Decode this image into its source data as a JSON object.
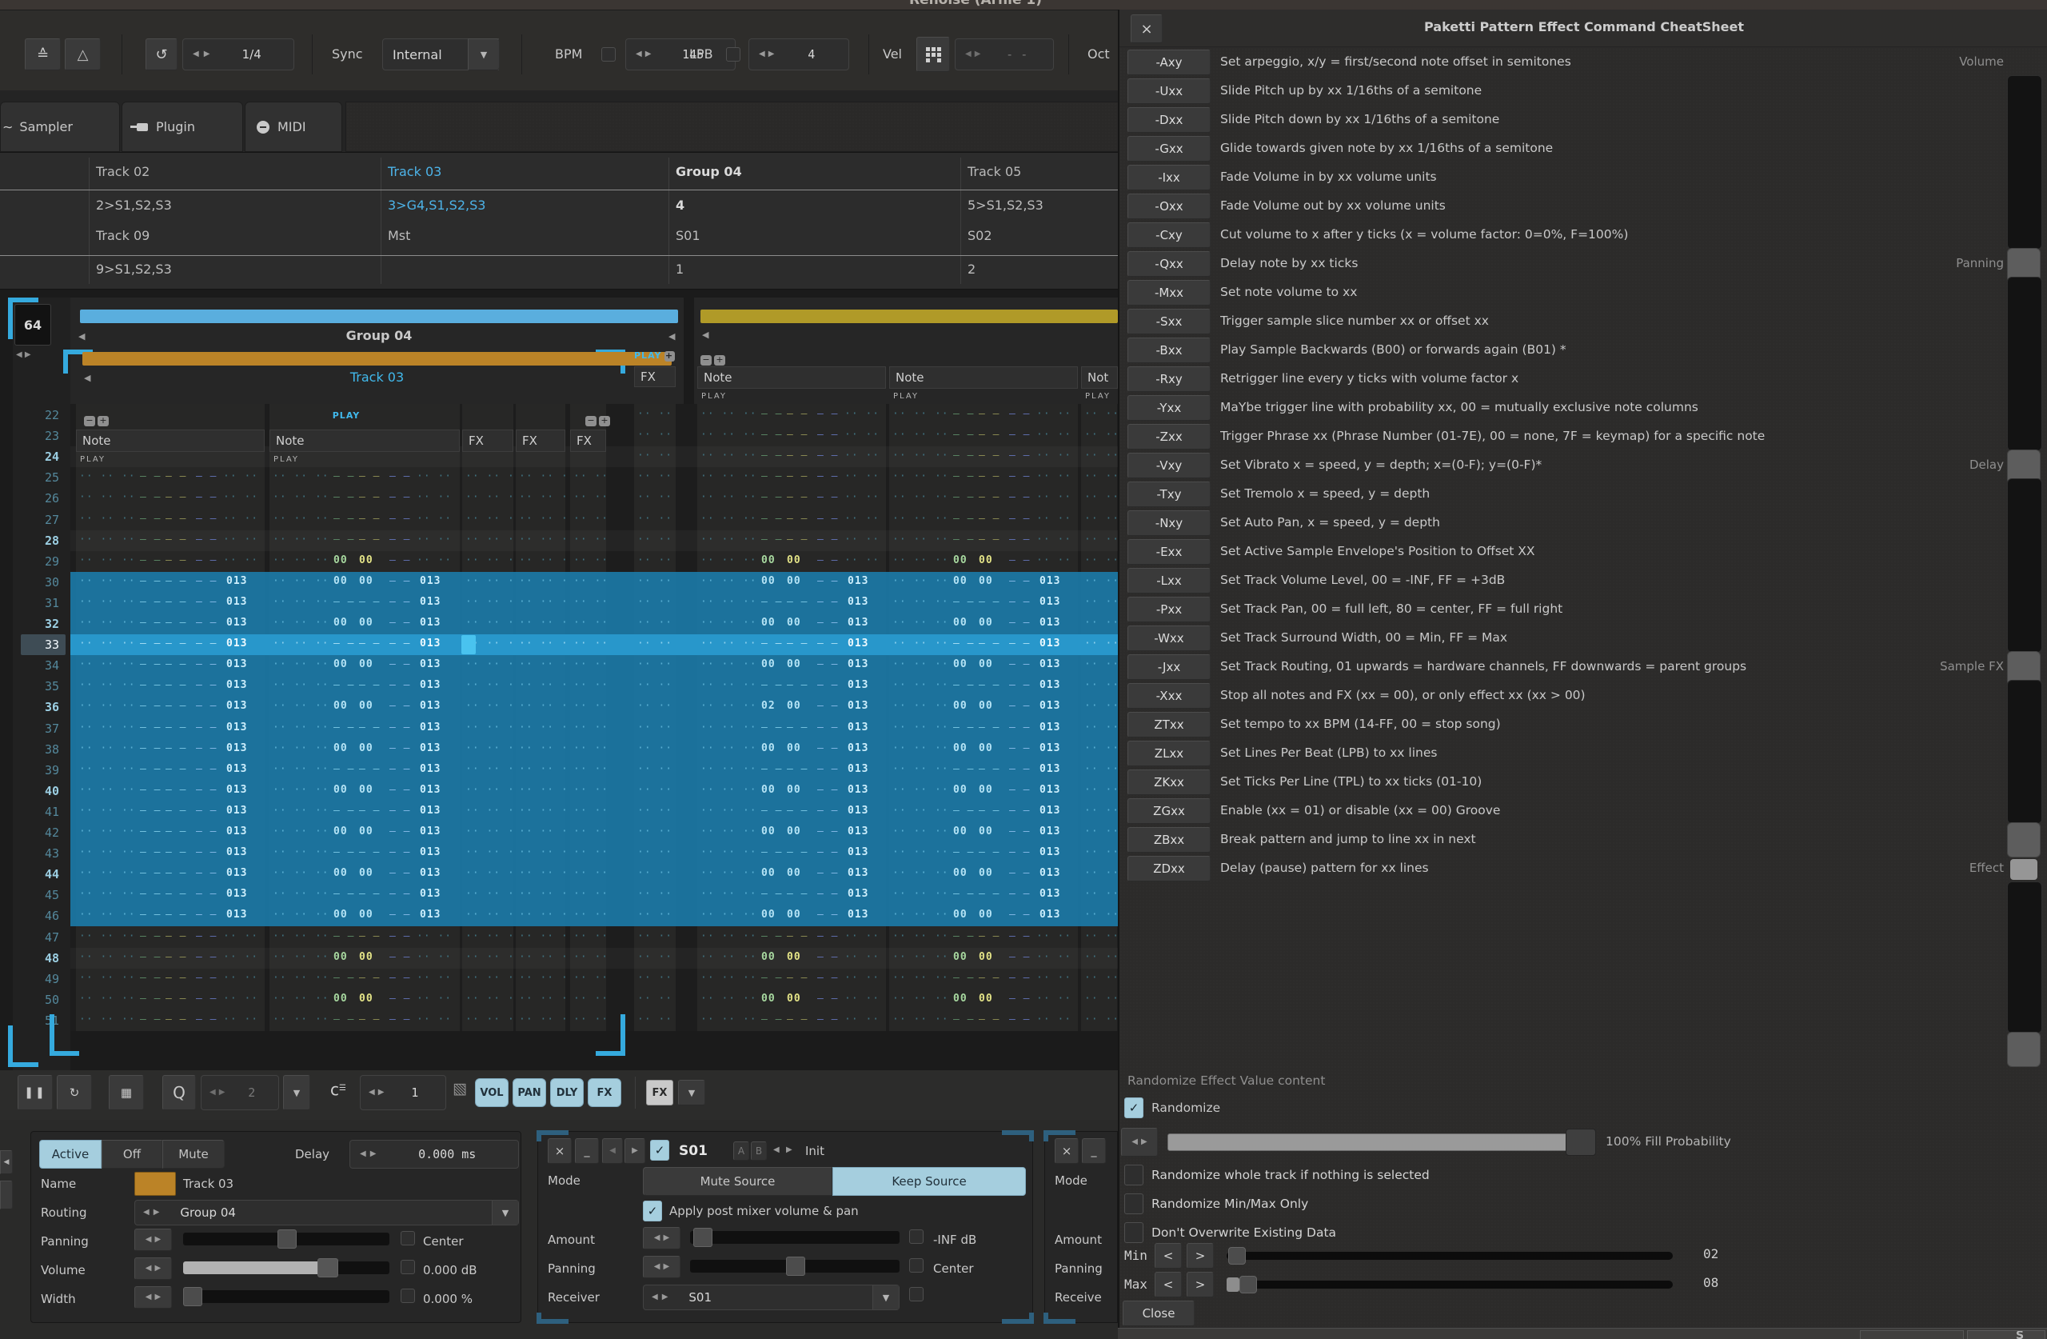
{
  "window": {
    "title": "Renoise (Arnie 1)"
  },
  "toolbar": {
    "quantize_value": "1/4",
    "sync_label": "Sync",
    "sync_value": "Internal",
    "bpm_label": "BPM",
    "bpm_value": "145",
    "lpb_label": "LPB",
    "lpb_value": "4",
    "vel_label": "Vel",
    "vel_value": "- -",
    "oct_label": "Oct"
  },
  "tabs": [
    {
      "label": "Sampler"
    },
    {
      "label": "Plugin"
    },
    {
      "label": "MIDI"
    }
  ],
  "routing_table": {
    "columns": [
      {
        "header": "Track 02",
        "style": "normal",
        "rows": [
          "2>S1,S2,S3",
          "Track 09",
          "9>S1,S2,S3"
        ]
      },
      {
        "header": "Track 03",
        "style": "blue",
        "rows": [
          "3>G4,S1,S2,S3",
          "Mst",
          ""
        ]
      },
      {
        "header": "Group 04",
        "style": "bold",
        "rows": [
          "4",
          "S01",
          "1"
        ]
      },
      {
        "header": "Track 05",
        "style": "normal",
        "rows": [
          "5>S1,S2,S3",
          "S02",
          "2"
        ]
      }
    ]
  },
  "pattern": {
    "length": "64",
    "group_title": "Group 04",
    "track_title": "Track 03",
    "play_label": "PLAY",
    "note_header": "Note",
    "fx_header": "FX",
    "cut_note_header": "Not",
    "tokens": {
      "dash": "– –",
      "vol_a": "00",
      "vol_b": "00",
      "vol_alt": "02",
      "fx_value": "013",
      "dots_a": "·· ·· ··",
      "dots_b": "·· ··",
      "dots_fx": "·· ·· ·· ··"
    },
    "line_start": 22,
    "line_end": 51,
    "selection_start": 30,
    "selection_end": 46,
    "current_line": 33,
    "rows": {
      "22": [
        "",
        "",
        "d",
        "d"
      ],
      "23": [
        "",
        "",
        "d",
        "d"
      ],
      "24": [
        "",
        "",
        "d",
        "d"
      ],
      "25": [
        "d",
        "d",
        "d",
        "d"
      ],
      "26": [
        "d",
        "d",
        "d",
        "d"
      ],
      "27": [
        "d",
        "d",
        "d",
        "d"
      ],
      "28": [
        "d",
        "d",
        "d",
        "d"
      ],
      "29": [
        "d",
        "g",
        "g",
        "g"
      ],
      "30": [
        "s",
        "sv",
        "sv",
        "sv"
      ],
      "31": [
        "s",
        "s",
        "s",
        "s"
      ],
      "32": [
        "s",
        "sv",
        "sv",
        "sv"
      ],
      "33": [
        "s",
        "s",
        "s",
        "s"
      ],
      "34": [
        "s",
        "sv",
        "sv",
        "sv"
      ],
      "35": [
        "s",
        "s",
        "s",
        "s"
      ],
      "36": [
        "s",
        "sv",
        "sv2",
        "sv"
      ],
      "37": [
        "s",
        "s",
        "s",
        "s"
      ],
      "38": [
        "s",
        "sv",
        "sv",
        "sv"
      ],
      "39": [
        "s",
        "s",
        "s",
        "s"
      ],
      "40": [
        "s",
        "sv",
        "sv",
        "sv"
      ],
      "41": [
        "s",
        "s",
        "s",
        "s"
      ],
      "42": [
        "s",
        "sv",
        "sv",
        "sv"
      ],
      "43": [
        "s",
        "s",
        "s",
        "s"
      ],
      "44": [
        "s",
        "sv",
        "sv",
        "sv"
      ],
      "45": [
        "s",
        "s",
        "s",
        "s"
      ],
      "46": [
        "s",
        "sv",
        "sv",
        "sv"
      ],
      "47": [
        "d",
        "d",
        "d",
        "d"
      ],
      "48": [
        "d",
        "g",
        "g",
        "g"
      ],
      "49": [
        "d",
        "d",
        "d",
        "d"
      ],
      "50": [
        "d",
        "g",
        "g",
        "g"
      ],
      "51": [
        "d",
        "d",
        "d",
        "d"
      ]
    }
  },
  "bottom_toolbar": {
    "q_label": "Q",
    "quantize_value": "2",
    "step_value": "1",
    "vol": "VOL",
    "pan": "PAN",
    "dly": "DLY",
    "fx": "FX",
    "fx_menu": "FX"
  },
  "track_panel": {
    "active": "Active",
    "off": "Off",
    "mute": "Mute",
    "delay_label": "Delay",
    "delay_value": "0.000 ms",
    "name_label": "Name",
    "name_value": "Track 03",
    "routing_label": "Routing",
    "routing_value": "Group 04",
    "panning_label": "Panning",
    "panning_value": "Center",
    "volume_label": "Volume",
    "volume_value": "0.000 dB",
    "width_label": "Width",
    "width_value": "0.000 %"
  },
  "send_panel": {
    "device_id": "S01",
    "a": "A",
    "b": "B",
    "preset": "Init",
    "mode_label": "Mode",
    "mute_source": "Mute Source",
    "keep_source": "Keep Source",
    "apply_label": "Apply post mixer volume & pan",
    "amount_label": "Amount",
    "amount_value": "-INF dB",
    "panning_label": "Panning",
    "panning_value": "Center",
    "receiver_label": "Receiver",
    "receiver_value": "S01"
  },
  "cut_panel": {
    "labels": [
      "Mode",
      "Amount",
      "Panning",
      "Receive"
    ]
  },
  "cheatsheet": {
    "title": "Paketti Pattern Effect Command CheatSheet",
    "commands": [
      {
        "cmd": "-Axy",
        "desc": "Set arpeggio, x/y = first/second note offset in semitones"
      },
      {
        "cmd": "-Uxx",
        "desc": "Slide Pitch up by xx 1/16ths of a semitone"
      },
      {
        "cmd": "-Dxx",
        "desc": "Slide Pitch down by xx 1/16ths of a semitone"
      },
      {
        "cmd": "-Gxx",
        "desc": "Glide towards given note by xx 1/16ths of a semitone"
      },
      {
        "cmd": "-Ixx",
        "desc": "Fade Volume in by xx volume units"
      },
      {
        "cmd": "-Oxx",
        "desc": "Fade Volume out by xx volume units"
      },
      {
        "cmd": "-Cxy",
        "desc": "Cut volume to x after y ticks (x = volume factor: 0=0%, F=100%)"
      },
      {
        "cmd": "-Qxx",
        "desc": "Delay note by xx ticks"
      },
      {
        "cmd": "-Mxx",
        "desc": "Set note volume to xx"
      },
      {
        "cmd": "-Sxx",
        "desc": "Trigger sample slice number xx or offset xx"
      },
      {
        "cmd": "-Bxx",
        "desc": "Play Sample Backwards (B00) or forwards again (B01) *"
      },
      {
        "cmd": "-Rxy",
        "desc": "Retrigger line every y ticks with volume factor x"
      },
      {
        "cmd": "-Yxx",
        "desc": "MaYbe trigger line with probability xx, 00 = mutually exclusive note columns"
      },
      {
        "cmd": "-Zxx",
        "desc": "Trigger Phrase xx (Phrase Number (01-7E), 00 = none, 7F = keymap) for a specific note"
      },
      {
        "cmd": "-Vxy",
        "desc": "Set Vibrato x = speed, y = depth; x=(0-F); y=(0-F)*"
      },
      {
        "cmd": "-Txy",
        "desc": "Set Tremolo x = speed, y = depth"
      },
      {
        "cmd": "-Nxy",
        "desc": "Set Auto Pan, x = speed, y = depth"
      },
      {
        "cmd": "-Exx",
        "desc": "Set Active Sample Envelope's Position to Offset XX"
      },
      {
        "cmd": "-Lxx",
        "desc": "Set Track Volume Level, 00 = -INF, FF = +3dB"
      },
      {
        "cmd": "-Pxx",
        "desc": "Set Track Pan, 00 = full left, 80 = center, FF = full right"
      },
      {
        "cmd": "-Wxx",
        "desc": "Set Track Surround Width, 00 = Min, FF = Max"
      },
      {
        "cmd": "-Jxx",
        "desc": "Set Track Routing, 01 upwards = hardware channels, FF downwards = parent groups"
      },
      {
        "cmd": "-Xxx",
        "desc": "Stop all notes and FX (xx = 00), or only effect xx (xx > 00)"
      },
      {
        "cmd": "ZTxx",
        "desc": "Set tempo to xx BPM (14-FF, 00 = stop song)"
      },
      {
        "cmd": "ZLxx",
        "desc": "Set Lines Per Beat (LPB) to xx lines"
      },
      {
        "cmd": "ZKxx",
        "desc": "Set Ticks Per Line (TPL) to xx ticks (01-10)"
      },
      {
        "cmd": "ZGxx",
        "desc": "Enable (xx = 01) or disable (xx = 00) Groove"
      },
      {
        "cmd": "ZBxx",
        "desc": "Break pattern and jump to line xx in next"
      },
      {
        "cmd": "ZDxx",
        "desc": "Delay (pause) pattern for xx lines"
      }
    ],
    "categories": [
      "Volume",
      "Panning",
      "Delay",
      "Sample FX",
      "Effect"
    ],
    "randomize": {
      "header": "Randomize Effect Value content",
      "checkbox": "Randomize",
      "fill_label": "100% Fill Probability",
      "options": [
        "Randomize whole track if nothing is selected",
        "Randomize Min/Max Only",
        "Don't Overwrite Existing Data"
      ],
      "min_label": "Min",
      "max_label": "Max",
      "min_value": "02",
      "max_value": "08",
      "dec": "<",
      "inc": ">",
      "close": "Close"
    }
  },
  "colors": {
    "accent_blue": "#35aade",
    "selection": "#1b78a6",
    "current_row": "#2897cb",
    "track03_bar": "#bb8327",
    "track05_bar": "#b09a28",
    "group_bar": "#5aaede",
    "light_blue_btn": "#a5cede"
  }
}
